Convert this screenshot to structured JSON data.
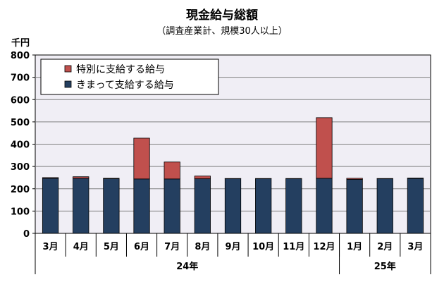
{
  "chart_data": {
    "type": "bar",
    "stacked": true,
    "title": "現金給与総額",
    "subtitle": "（調査産業計、規模30人以上）",
    "yunit": "千円",
    "ylim": [
      0,
      800
    ],
    "yticks": [
      0,
      100,
      200,
      300,
      400,
      500,
      600,
      700,
      800
    ],
    "grid": true,
    "legend_position": "top-left",
    "categories": [
      "3月",
      "4月",
      "5月",
      "6月",
      "7月",
      "8月",
      "9月",
      "10月",
      "11月",
      "12月",
      "1月",
      "2月",
      "3月"
    ],
    "groups": [
      {
        "label": "24年",
        "count": 10
      },
      {
        "label": "25年",
        "count": 3
      }
    ],
    "series": [
      {
        "name": "きまって支給する給与",
        "color": "#243f60",
        "values": [
          247,
          247,
          245,
          244,
          244,
          245,
          245,
          245,
          245,
          247,
          242,
          245,
          246
        ]
      },
      {
        "name": "特別に支給する給与",
        "color": "#c0504d",
        "values": [
          3,
          7,
          2,
          183,
          76,
          12,
          1,
          1,
          1,
          272,
          5,
          1,
          2
        ]
      }
    ],
    "colors": {
      "plot_bg": "#f0eef5",
      "grid": "#808080"
    }
  }
}
